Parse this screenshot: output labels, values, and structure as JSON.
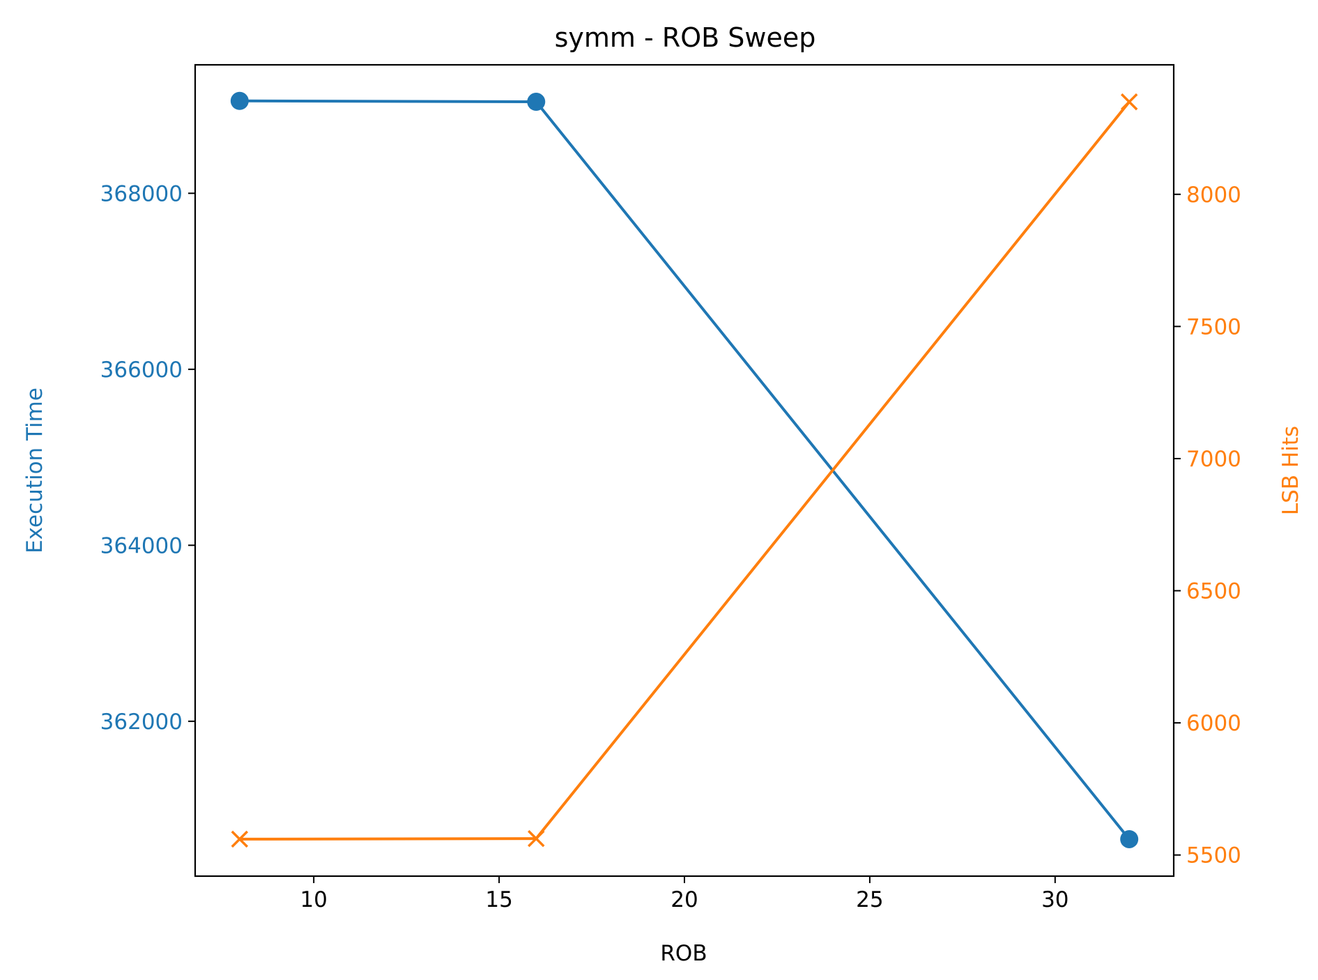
{
  "chart_data": {
    "type": "line",
    "title": "symm - ROB Sweep",
    "xlabel": "ROB",
    "x": [
      8,
      16,
      32
    ],
    "xlim": [
      6.8,
      33.2
    ],
    "xticks": [
      10,
      15,
      20,
      25,
      30
    ],
    "grid": false,
    "legend": "none",
    "series": [
      {
        "axis": "left",
        "ylabel": "Execution Time",
        "color": "#1f77b4",
        "marker": "circle",
        "values": [
          369050,
          369040,
          360660
        ],
        "ylim": [
          360240,
          369460
        ],
        "yticks": [
          362000,
          364000,
          366000,
          368000
        ]
      },
      {
        "axis": "right",
        "ylabel": "LSB Hits",
        "color": "#ff7f0e",
        "marker": "x",
        "values": [
          5560,
          5562,
          8350
        ],
        "ylim": [
          5420,
          8490
        ],
        "yticks": [
          5500,
          6000,
          6500,
          7000,
          7500,
          8000
        ]
      }
    ]
  }
}
